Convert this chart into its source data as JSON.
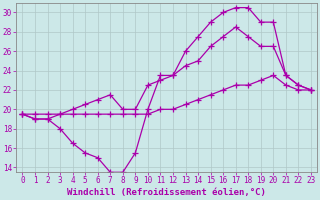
{
  "xlabel": "Windchill (Refroidissement éolien,°C)",
  "bg_color": "#cce8e8",
  "line_color": "#aa00aa",
  "xlim": [
    -0.5,
    23.5
  ],
  "ylim": [
    13.5,
    31.0
  ],
  "xticks": [
    0,
    1,
    2,
    3,
    4,
    5,
    6,
    7,
    8,
    9,
    10,
    11,
    12,
    13,
    14,
    15,
    16,
    17,
    18,
    19,
    20,
    21,
    22,
    23
  ],
  "yticks": [
    14,
    16,
    18,
    20,
    22,
    24,
    26,
    28,
    30
  ],
  "series": [
    {
      "x": [
        0,
        1,
        2,
        3,
        4,
        5,
        6,
        7,
        8,
        9,
        10,
        11,
        12,
        13,
        14,
        15,
        16,
        17,
        18,
        19,
        20,
        21,
        22,
        23
      ],
      "y": [
        19.5,
        19.0,
        19.0,
        18.0,
        16.5,
        15.5,
        15.0,
        13.5,
        13.5,
        15.5,
        20.0,
        23.5,
        23.5,
        26.0,
        27.5,
        29.0,
        30.0,
        30.5,
        30.5,
        29.0,
        29.0,
        23.5,
        22.5,
        22.0
      ]
    },
    {
      "x": [
        0,
        1,
        2,
        3,
        4,
        5,
        6,
        7,
        8,
        9,
        10,
        11,
        12,
        13,
        14,
        15,
        16,
        17,
        18,
        19,
        20,
        21,
        22,
        23
      ],
      "y": [
        19.5,
        19.0,
        19.0,
        19.5,
        20.0,
        20.5,
        21.0,
        21.5,
        20.0,
        20.0,
        22.5,
        23.0,
        23.5,
        24.5,
        25.0,
        26.5,
        27.5,
        28.5,
        27.5,
        26.5,
        26.5,
        23.5,
        22.5,
        22.0
      ]
    },
    {
      "x": [
        0,
        1,
        2,
        3,
        4,
        5,
        6,
        7,
        8,
        9,
        10,
        11,
        12,
        13,
        14,
        15,
        16,
        17,
        18,
        19,
        20,
        21,
        22,
        23
      ],
      "y": [
        19.5,
        19.5,
        19.5,
        19.5,
        19.5,
        19.5,
        19.5,
        19.5,
        19.5,
        19.5,
        19.5,
        20.0,
        20.0,
        20.5,
        21.0,
        21.5,
        22.0,
        22.5,
        22.5,
        23.0,
        23.5,
        22.5,
        22.0,
        22.0
      ]
    }
  ],
  "marker": "+",
  "marker_size": 4,
  "linewidth": 0.9,
  "grid_color": "#b0c8c8",
  "xlabel_fontsize": 6.5,
  "tick_fontsize": 5.5
}
